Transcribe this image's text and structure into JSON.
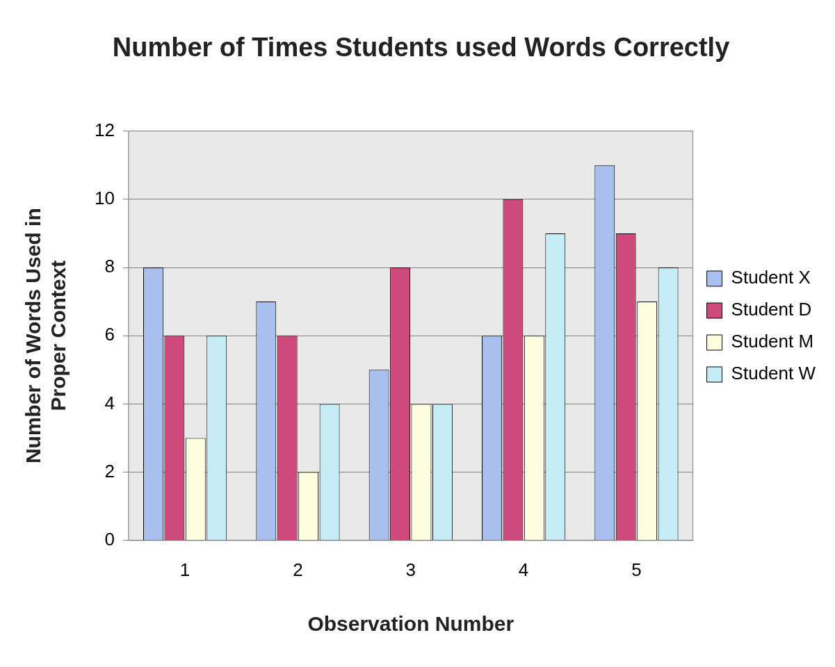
{
  "chart_data": {
    "type": "bar",
    "title": "Number of Times Students used Words Correctly",
    "xlabel": "Observation Number",
    "ylabel": "Number of Words Used in\nProper Context",
    "categories": [
      "1",
      "2",
      "3",
      "4",
      "5"
    ],
    "series": [
      {
        "name": "Student X",
        "color": "#a9c0ee",
        "values": [
          8,
          7,
          5,
          6,
          11
        ]
      },
      {
        "name": "Student D",
        "color": "#cf4a7c",
        "values": [
          6,
          6,
          8,
          10,
          9
        ]
      },
      {
        "name": "Student M",
        "color": "#fffde0",
        "values": [
          3,
          2,
          4,
          6,
          7
        ]
      },
      {
        "name": "Student W",
        "color": "#c6edf5",
        "values": [
          6,
          4,
          4,
          9,
          8
        ]
      }
    ],
    "ylim": [
      0,
      12
    ],
    "yticks": [
      0,
      2,
      4,
      6,
      8,
      10,
      12
    ],
    "grid": "y",
    "legend": "right"
  }
}
